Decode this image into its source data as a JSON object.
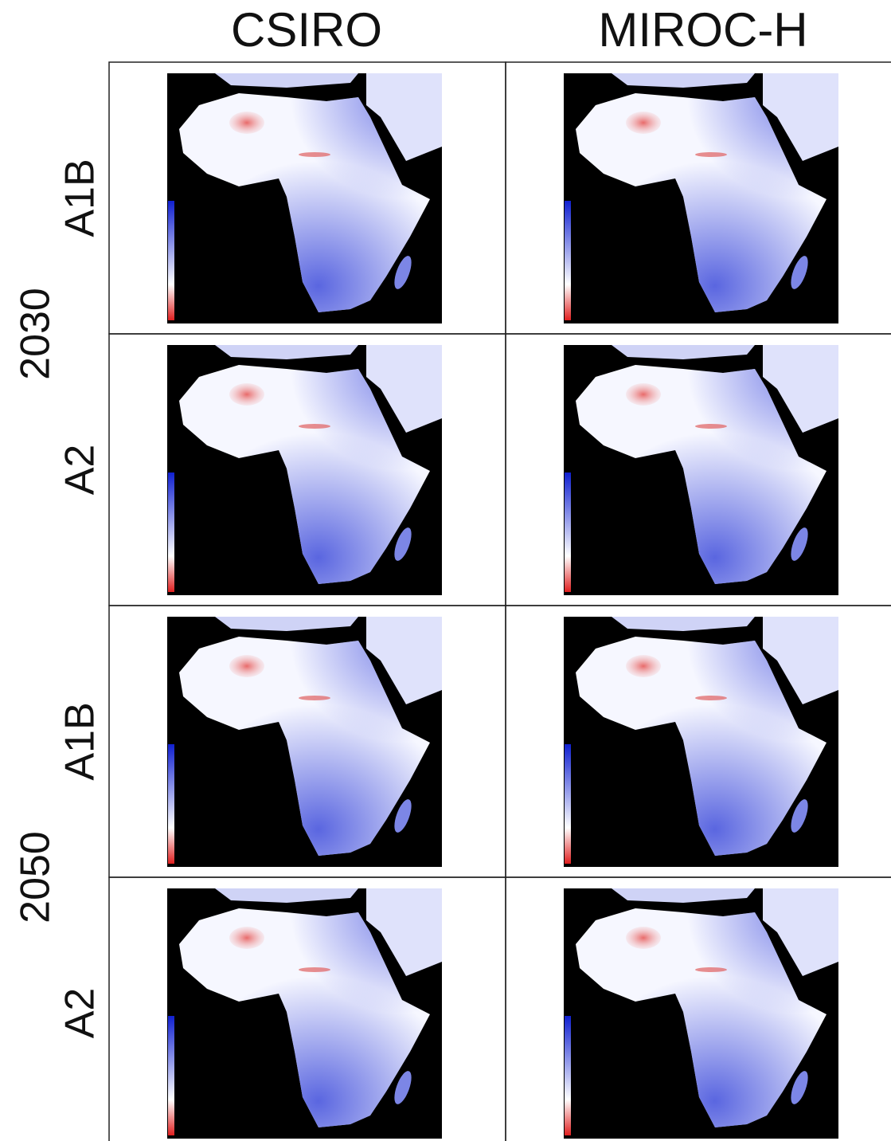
{
  "columns": [
    "CSIRO",
    "MIROC-H"
  ],
  "years": [
    {
      "label": "2030",
      "scenarios": [
        "A1B",
        "A2"
      ]
    },
    {
      "label": "2050",
      "scenarios": [
        "A1B",
        "A2"
      ]
    }
  ]
}
